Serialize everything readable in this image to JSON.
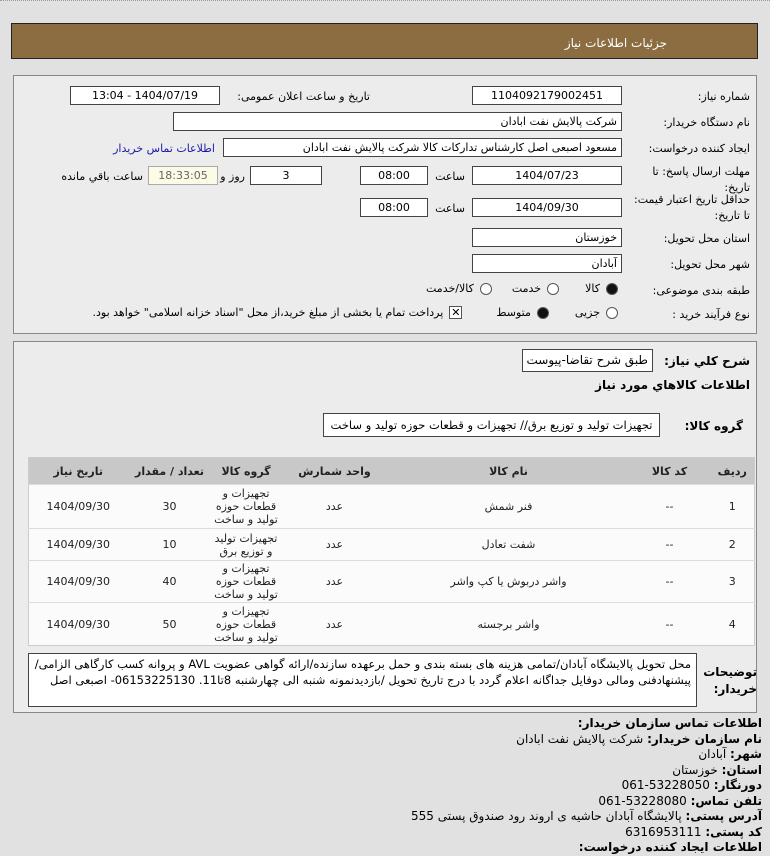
{
  "header": {
    "title": "جزئیات اطلاعات نیاز"
  },
  "form": {
    "need_number_label": "شماره نیاز:",
    "need_number": "1104092179002451",
    "announce_label": "تاریخ و ساعت اعلان عمومی:",
    "announce_value": "1404/07/19 - 13:04",
    "buyer_label": "نام دستگاه خریدار:",
    "buyer_value": "شرکت پالایش نفت ابادان",
    "creator_label": "ایجاد کننده درخواست:",
    "creator_value": "مسعود اصبعی اصل کارشناس تدارکات کالا  شرکت پالایش نفت ابادان",
    "contact_link": "اطلاعات تماس خریدار",
    "deadline_label": "مهلت ارسال پاسخ: تا تاریخ:",
    "deadline_date": "1404/07/23",
    "time_label": "ساعت",
    "deadline_time": "08:00",
    "days_value": "3",
    "days_label": "روز و",
    "remaining_time": "18:33:05",
    "remaining_label": "ساعت باقي مانده",
    "validity_label": "حداقل تاریخ اعتبار قیمت: تا تاریخ:",
    "validity_date": "1404/09/30",
    "validity_time": "08:00",
    "province_label": "استان محل تحویل:",
    "province_value": "خوزستان",
    "city_label": "شهر محل تحویل:",
    "city_value": "آبادان",
    "category_label": "طبقه بندی موضوعی:",
    "category_options": [
      "کالا",
      "خدمت",
      "کالا/خدمت"
    ],
    "category_selected": "کالا",
    "process_label": "نوع فرآیند خرید :",
    "process_options": [
      "جزیی",
      "متوسط"
    ],
    "process_selected": "متوسط",
    "payment_note": "پرداخت تمام یا بخشی از مبلغ خرید،از محل \"اسناد خزانه اسلامی\" خواهد بود.",
    "payment_checked": true
  },
  "details": {
    "summary_label": "شرح کلي نیاز:",
    "summary_value": "طبق شرح تقاضا-پیوست",
    "goods_title": "اطلاعات کالاهاي مورد نیاز",
    "group_label": "گروه کالا:",
    "group_value": "تجهیزات تولید و توزیع برق// تجهیزات و قطعات حوزه تولید و ساخت"
  },
  "table": {
    "headers": [
      "ردیف",
      "کد کالا",
      "نام کالا",
      "واحد شمارش",
      "گروه کالا",
      "تعداد / مقدار",
      "تاریخ نیاز"
    ],
    "rows": [
      [
        "1",
        "--",
        "فنر شمش",
        "عدد",
        "تجهیزات و قطعات حوزه تولید و ساخت",
        "30",
        "1404/09/30"
      ],
      [
        "2",
        "--",
        "شفت تعادل",
        "عدد",
        "تجهیزات تولید و توزیع برق",
        "10",
        "1404/09/30"
      ],
      [
        "3",
        "--",
        "واشر دربوش یا کپ واشر",
        "عدد",
        "تجهیزات و قطعات حوزه تولید و ساخت",
        "40",
        "1404/09/30"
      ],
      [
        "4",
        "--",
        "واشر برجسته",
        "عدد",
        "تجهیزات و قطعات حوزه تولید و ساخت",
        "50",
        "1404/09/30"
      ]
    ]
  },
  "notes": {
    "label": "توضیحات خریدار:",
    "text": "محل تحویل پالایشگاه آبادان/تمامی هزینه های بسته بندی و حمل برعهده سازنده/ارائه گواهی عضویت AVL و پروانه کسب کارگاهی الزامی/پیشنهادفنی ومالی دوفایل جداگانه اعلام گردد با درج تاریخ تحویل /بازدیدنمونه شنبه الی چهارشنبه 8تا11. 06153225130- اصبعی اصل"
  },
  "contact": {
    "title": "اطلاعات تماس سازمان خریدار:",
    "org_label": "نام سازمان خریدار:",
    "org_value": "شرکت پالایش نفت ابادان",
    "city_label": "شهر:",
    "city_value": "آبادان",
    "province_label": "استان:",
    "province_value": "خوزستان",
    "fax_label": "دورنگار:",
    "fax_value": "061-53228050",
    "phone_label": "تلفن تماس:",
    "phone_value": "061-53228080",
    "address_label": "آدرس پستی:",
    "address_value": "پالایشگاه آبادان حاشیه ی اروند رود صندوق پستی 555",
    "postal_label": "کد پستی:",
    "postal_value": "6316953111",
    "creator_title": "اطلاعات ایجاد کننده درخواست:"
  }
}
